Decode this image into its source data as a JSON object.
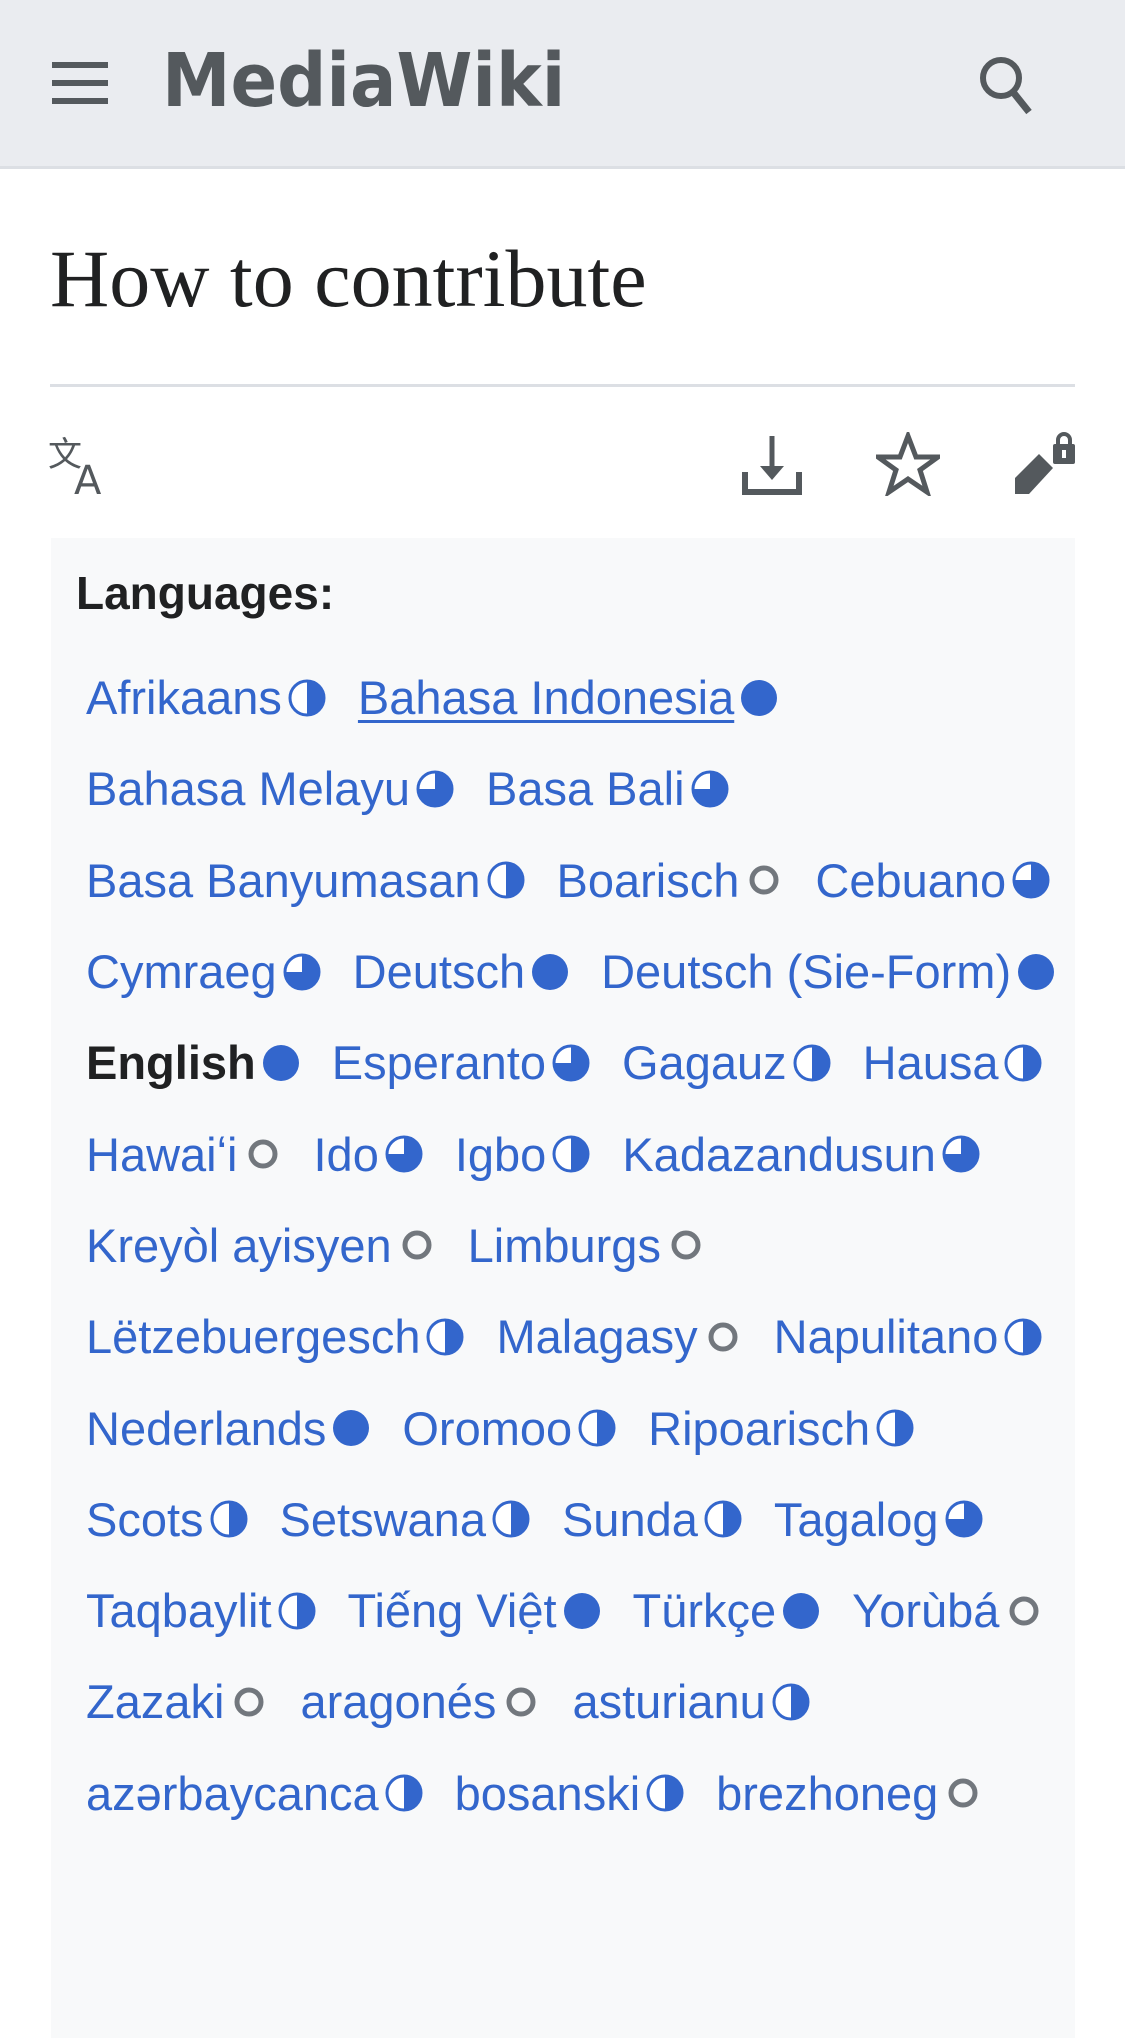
{
  "header": {
    "site_name": "MediaWiki",
    "menu_icon": "hamburger-icon",
    "search_icon": "search-icon"
  },
  "page": {
    "title": "How to contribute"
  },
  "actions": {
    "translate_icon": "language-icon",
    "download_icon": "download-icon",
    "watch_icon": "star-icon",
    "edit_icon": "edit-lock-icon"
  },
  "colors": {
    "link": "#3366cc",
    "progress": "#3366cc",
    "empty": "#72777d",
    "header_bg": "#eaecf0"
  },
  "languages": {
    "label": "Languages:",
    "items": [
      {
        "name": "Afrikaans",
        "progress": 50
      },
      {
        "name": "Bahasa Indonesia",
        "progress": 100,
        "hovered": true
      },
      {
        "name": "Bahasa Melayu",
        "progress": 75
      },
      {
        "name": "Basa Bali",
        "progress": 75
      },
      {
        "name": "Basa Banyumasan",
        "progress": 50
      },
      {
        "name": "Boarisch",
        "progress": 0
      },
      {
        "name": "Cebuano",
        "progress": 75
      },
      {
        "name": "Cymraeg",
        "progress": 75
      },
      {
        "name": "Deutsch",
        "progress": 100
      },
      {
        "name": "Deutsch (Sie-Form)",
        "progress": 100
      },
      {
        "name": "English",
        "progress": 100,
        "current": true
      },
      {
        "name": "Esperanto",
        "progress": 75
      },
      {
        "name": "Gagauz",
        "progress": 50
      },
      {
        "name": "Hausa",
        "progress": 50
      },
      {
        "name": "Hawaiʻi",
        "progress": 0
      },
      {
        "name": "Ido",
        "progress": 75
      },
      {
        "name": "Igbo",
        "progress": 50
      },
      {
        "name": "Kadazandusun",
        "progress": 75
      },
      {
        "name": "Kreyòl ayisyen",
        "progress": 0
      },
      {
        "name": "Limburgs",
        "progress": 0
      },
      {
        "name": "Lëtzebuergesch",
        "progress": 50
      },
      {
        "name": "Malagasy",
        "progress": 0
      },
      {
        "name": "Napulitano",
        "progress": 50
      },
      {
        "name": "Nederlands",
        "progress": 100
      },
      {
        "name": "Oromoo",
        "progress": 50
      },
      {
        "name": "Ripoarisch",
        "progress": 50
      },
      {
        "name": "Scots",
        "progress": 50
      },
      {
        "name": "Setswana",
        "progress": 50
      },
      {
        "name": "Sunda",
        "progress": 50
      },
      {
        "name": "Tagalog",
        "progress": 75
      },
      {
        "name": "Taqbaylit",
        "progress": 50
      },
      {
        "name": "Tiếng Việt",
        "progress": 100
      },
      {
        "name": "Türkçe",
        "progress": 100
      },
      {
        "name": "Yorùbá",
        "progress": 0
      },
      {
        "name": "Zazaki",
        "progress": 0
      },
      {
        "name": "aragonés",
        "progress": 0
      },
      {
        "name": "asturianu",
        "progress": 50
      },
      {
        "name": "azərbaycanca",
        "progress": 50
      },
      {
        "name": "bosanski",
        "progress": 50
      },
      {
        "name": "brezhoneg",
        "progress": 0
      }
    ]
  }
}
